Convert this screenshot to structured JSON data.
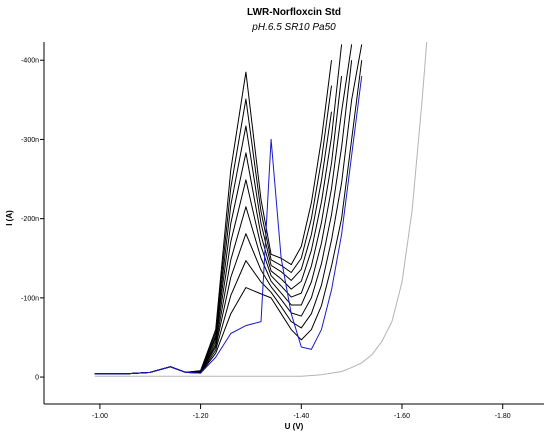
{
  "chart_data": {
    "type": "line",
    "title": "LWR-Norfloxcin Std",
    "subtitle": "pH.6.5 SR10 Pa50",
    "x_label": "U (V)",
    "y_label": "I (A)",
    "xlim": [
      -0.889,
      -1.882
    ],
    "xticks": [
      {
        "value": -1.0,
        "label": "-1.00"
      },
      {
        "value": -1.2,
        "label": "-1.20"
      },
      {
        "value": -1.4,
        "label": "-1.40"
      },
      {
        "value": -1.6,
        "label": "-1.60"
      },
      {
        "value": -1.8,
        "label": "-1.80"
      }
    ],
    "ylim": [
      3.4e-08,
      -4.23e-07
    ],
    "yticks": [
      0,
      {
        "value": -1e-07,
        "label": "-100n"
      },
      {
        "value": -2e-07,
        "label": "-200n"
      },
      {
        "value": -3e-07,
        "label": "-300n"
      },
      {
        "value": -4e-07,
        "label": "-400n"
      }
    ],
    "x": [
      -0.99,
      -1.05,
      -1.1,
      -1.14,
      -1.17,
      -1.2,
      -1.23,
      -1.26,
      -1.29,
      -1.32,
      -1.34,
      -1.36,
      -1.38,
      -1.4,
      -1.42,
      -1.44,
      -1.46,
      -1.48,
      -1.5,
      -1.52,
      -1.54,
      -1.56,
      -1.58,
      -1.6,
      -1.62,
      -1.64,
      -1.65
    ],
    "series": [
      {
        "color": "#b4b4b4",
        "values": [
          -1e-09,
          -1e-09,
          -1e-09,
          -1e-09,
          -1e-09,
          -1e-09,
          -1e-09,
          -1e-09,
          -1e-09,
          -1e-09,
          -1e-09,
          -1e-09,
          -1e-09,
          -1e-09,
          -2e-09,
          -3e-09,
          -5e-09,
          -7e-09,
          -1.2e-08,
          -1.8e-08,
          -2.8e-08,
          -4.5e-08,
          -7e-08,
          -1.2e-07,
          -2.1e-07,
          -3.5e-07,
          -4.3e-07
        ]
      },
      {
        "color": "#000000",
        "values": [
          -4e-09,
          -4e-09,
          -6e-09,
          -1.3e-08,
          -6e-09,
          -5e-09,
          -3e-08,
          -8e-08,
          -1.13e-07,
          -1.05e-07,
          -1e-07,
          -8e-08,
          -6e-08,
          -4.7e-08,
          -6e-08,
          -9e-08,
          -1.4e-07,
          -2e-07,
          -3e-07,
          -4e-07,
          null,
          null,
          null,
          null,
          null,
          null,
          null
        ]
      },
      {
        "color": "#000000",
        "values": [
          -4e-09,
          -4e-09,
          -6e-09,
          -1.3e-08,
          -6e-09,
          -5e-09,
          -3.4e-08,
          -1.03e-07,
          -1.47e-07,
          -1.2e-07,
          -1.07e-07,
          -8.9e-08,
          -7e-08,
          -6.2e-08,
          -8e-08,
          -1.16e-07,
          -1.73e-07,
          -2.45e-07,
          -3.5e-07,
          -4.2e-07,
          null,
          null,
          null,
          null,
          null,
          null,
          null
        ]
      },
      {
        "color": "#000000",
        "values": [
          -4e-09,
          -4e-09,
          -6e-09,
          -1.3e-08,
          -6e-09,
          -6e-09,
          -3.8e-08,
          -1.26e-07,
          -1.81e-07,
          -1.35e-07,
          -1.14e-07,
          -9.8e-08,
          -8.1e-08,
          -7.7e-08,
          -1e-07,
          -1.43e-07,
          -2.05e-07,
          -2.9e-07,
          -4e-07,
          null,
          null,
          null,
          null,
          null,
          null,
          null,
          null
        ]
      },
      {
        "color": "#000000",
        "values": [
          -4e-09,
          -4e-09,
          -6e-09,
          -1.3e-08,
          -6e-09,
          -6e-09,
          -4.1e-08,
          -1.48e-07,
          -2.15e-07,
          -1.5e-07,
          -1.21e-07,
          -1.06e-07,
          -9.1e-08,
          -9.1e-08,
          -1.2e-07,
          -1.69e-07,
          -2.38e-07,
          -3.35e-07,
          -4.2e-07,
          null,
          null,
          null,
          null,
          null,
          null,
          null,
          null
        ]
      },
      {
        "color": "#000000",
        "values": [
          -4e-09,
          -4e-09,
          -6e-09,
          -1.3e-08,
          -6e-09,
          -6e-09,
          -4.5e-08,
          -1.71e-07,
          -2.49e-07,
          -1.65e-07,
          -1.28e-07,
          -1.15e-07,
          -1.01e-07,
          -1.06e-07,
          -1.4e-07,
          -1.95e-07,
          -2.7e-07,
          -3.8e-07,
          null,
          null,
          null,
          null,
          null,
          null,
          null,
          null,
          null
        ]
      },
      {
        "color": "#000000",
        "values": [
          -4e-09,
          -4e-09,
          -6e-09,
          -1.3e-08,
          -6e-09,
          -7e-09,
          -4.9e-08,
          -1.94e-07,
          -2.83e-07,
          -1.79e-07,
          -1.34e-07,
          -1.24e-07,
          -1.11e-07,
          -1.21e-07,
          -1.6e-07,
          -2.21e-07,
          -3.03e-07,
          -4.2e-07,
          null,
          null,
          null,
          null,
          null,
          null,
          null,
          null,
          null
        ]
      },
      {
        "color": "#000000",
        "values": [
          -4e-09,
          -4e-09,
          -6e-09,
          -1.3e-08,
          -6e-09,
          -7e-09,
          -5.2e-08,
          -2.17e-07,
          -3.17e-07,
          -1.94e-07,
          -1.41e-07,
          -1.33e-07,
          -1.22e-07,
          -1.36e-07,
          -1.8e-07,
          -2.48e-07,
          -3.35e-07,
          null,
          null,
          null,
          null,
          null,
          null,
          null,
          null,
          null,
          null
        ]
      },
      {
        "color": "#000000",
        "values": [
          -4e-09,
          -4e-09,
          -6e-09,
          -1.3e-08,
          -6e-09,
          -8e-09,
          -5.6e-08,
          -2.39e-07,
          -3.51e-07,
          -2.09e-07,
          -1.48e-07,
          -1.41e-07,
          -1.32e-07,
          -1.5e-07,
          -2e-07,
          -2.74e-07,
          -3.68e-07,
          null,
          null,
          null,
          null,
          null,
          null,
          null,
          null,
          null,
          null
        ]
      },
      {
        "color": "#000000",
        "values": [
          -4e-09,
          -4e-09,
          -6e-09,
          -1.3e-08,
          -6e-09,
          -8e-09,
          -6e-08,
          -2.62e-07,
          -3.85e-07,
          -2.24e-07,
          -1.55e-07,
          -1.5e-07,
          -1.42e-07,
          -1.65e-07,
          -2.2e-07,
          -3e-07,
          -4e-07,
          null,
          null,
          null,
          null,
          null,
          null,
          null,
          null,
          null,
          null
        ]
      },
      {
        "color": "#1a1acc",
        "values": [
          -4e-09,
          -4e-09,
          -6e-09,
          -1.3e-08,
          -6e-09,
          -5e-09,
          -2.5e-08,
          -5.5e-08,
          -6.5e-08,
          -7e-08,
          -3e-07,
          -1.5e-07,
          -8e-08,
          -3.8e-08,
          -3.5e-08,
          -6e-08,
          -1.1e-07,
          -1.8e-07,
          -2.8e-07,
          -3.8e-07,
          null,
          null,
          null,
          null,
          null,
          null,
          null
        ]
      }
    ]
  }
}
